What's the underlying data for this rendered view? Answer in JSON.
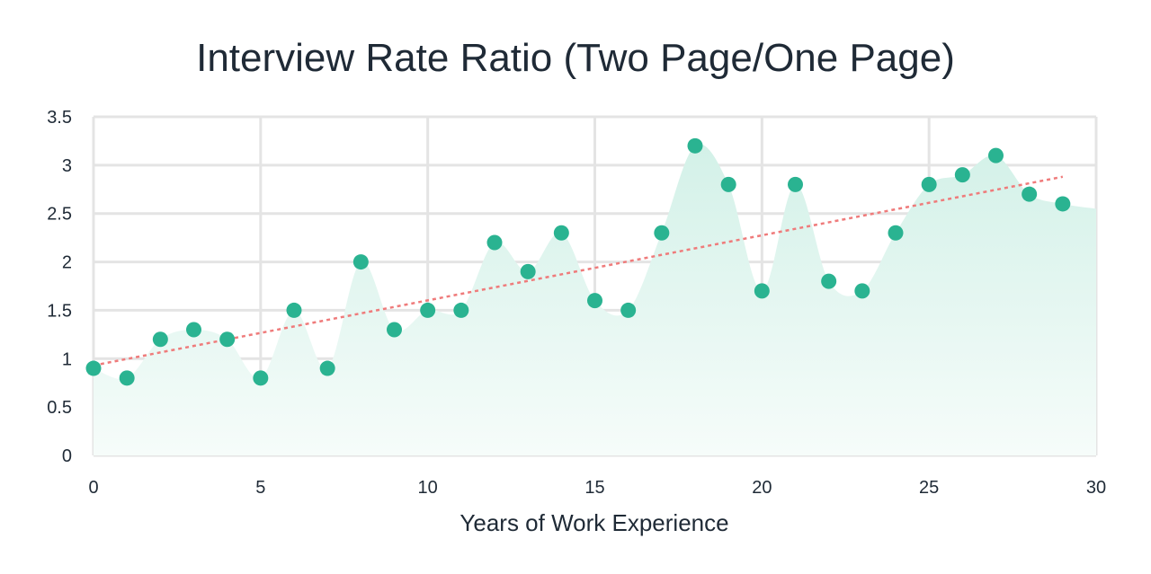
{
  "chart_data": {
    "type": "scatter",
    "title": "Interview Rate Ratio (Two Page/One Page)",
    "xlabel": "Years of Work Experience",
    "ylabel": "",
    "xlim": [
      0,
      30
    ],
    "ylim": [
      0,
      3.5
    ],
    "x_ticks": [
      "0",
      "5",
      "10",
      "15",
      "20",
      "25",
      "30"
    ],
    "y_ticks": [
      "0",
      "0.5",
      "1",
      "1.5",
      "2",
      "2.5",
      "3",
      "3.5"
    ],
    "grid": true,
    "legend": "none",
    "x": [
      0,
      1,
      2,
      3,
      4,
      5,
      6,
      7,
      8,
      9,
      10,
      11,
      12,
      13,
      14,
      15,
      16,
      17,
      18,
      19,
      20,
      21,
      22,
      23,
      24,
      25,
      26,
      27,
      28,
      29
    ],
    "series": [
      {
        "values": [
          0.9,
          0.8,
          1.2,
          1.3,
          1.2,
          0.8,
          1.5,
          0.9,
          2.0,
          1.3,
          1.5,
          1.5,
          2.2,
          1.9,
          2.3,
          1.6,
          1.5,
          2.3,
          3.2,
          2.8,
          1.7,
          2.8,
          1.8,
          1.7,
          2.3,
          2.8,
          2.9,
          3.1,
          2.7,
          2.6
        ],
        "color": "#2ab391",
        "area_fill": "#d3f1e8",
        "trendline": {
          "color": "#ef7b7b",
          "start": [
            0,
            0.93
          ],
          "end": [
            29,
            2.88
          ]
        }
      }
    ]
  }
}
